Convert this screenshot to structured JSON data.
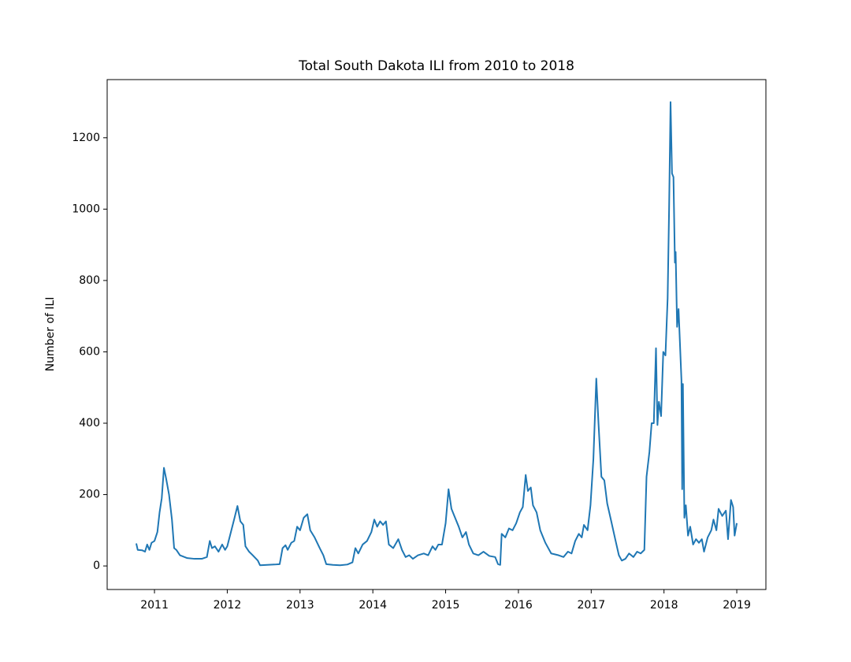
{
  "chart_data": {
    "type": "line",
    "title": "Total South Dakota ILI from 2010 to 2018",
    "ylabel": "Number of ILI",
    "xlim": [
      2010.35,
      2019.4
    ],
    "xticks": [
      2011,
      2012,
      2013,
      2014,
      2015,
      2016,
      2017,
      2018,
      2019
    ],
    "ylim": [
      -66,
      1363
    ],
    "yticks": [
      0,
      200,
      400,
      600,
      800,
      1000,
      1200
    ],
    "grid": false,
    "x": [
      2010.75,
      2010.77,
      2010.83,
      2010.87,
      2010.9,
      2010.93,
      2010.96,
      2011.0,
      2011.04,
      2011.07,
      2011.1,
      2011.13,
      2011.16,
      2011.2,
      2011.24,
      2011.27,
      2011.3,
      2011.35,
      2011.45,
      2011.55,
      2011.65,
      2011.72,
      2011.76,
      2011.79,
      2011.83,
      2011.88,
      2011.93,
      2011.97,
      2012.0,
      2012.05,
      2012.1,
      2012.14,
      2012.18,
      2012.22,
      2012.25,
      2012.3,
      2012.35,
      2012.42,
      2012.45,
      2012.55,
      2012.65,
      2012.72,
      2012.76,
      2012.8,
      2012.83,
      2012.88,
      2012.92,
      2012.96,
      2013.0,
      2013.05,
      2013.1,
      2013.14,
      2013.2,
      2013.27,
      2013.32,
      2013.36,
      2013.45,
      2013.55,
      2013.65,
      2013.72,
      2013.76,
      2013.8,
      2013.86,
      2013.92,
      2013.98,
      2014.02,
      2014.06,
      2014.1,
      2014.14,
      2014.18,
      2014.22,
      2014.28,
      2014.35,
      2014.4,
      2014.45,
      2014.5,
      2014.55,
      2014.62,
      2014.7,
      2014.76,
      2014.82,
      2014.86,
      2014.9,
      2014.95,
      2015.0,
      2015.04,
      2015.08,
      2015.12,
      2015.18,
      2015.23,
      2015.28,
      2015.32,
      2015.38,
      2015.45,
      2015.52,
      2015.6,
      2015.68,
      2015.72,
      2015.75,
      2015.77,
      2015.82,
      2015.87,
      2015.92,
      2015.97,
      2016.02,
      2016.06,
      2016.1,
      2016.13,
      2016.17,
      2016.2,
      2016.25,
      2016.3,
      2016.37,
      2016.45,
      2016.55,
      2016.62,
      2016.68,
      2016.73,
      2016.78,
      2016.83,
      2016.87,
      2016.9,
      2016.95,
      2016.99,
      2017.03,
      2017.07,
      2017.1,
      2017.14,
      2017.18,
      2017.22,
      2017.27,
      2017.33,
      2017.38,
      2017.42,
      2017.47,
      2017.52,
      2017.58,
      2017.63,
      2017.68,
      2017.73,
      2017.76,
      2017.8,
      2017.83,
      2017.86,
      2017.89,
      2017.91,
      2017.93,
      2017.96,
      2017.99,
      2018.02,
      2018.05,
      2018.07,
      2018.09,
      2018.11,
      2018.13,
      2018.15,
      2018.16,
      2018.18,
      2018.2,
      2018.24,
      2018.25,
      2018.26,
      2018.28,
      2018.3,
      2018.33,
      2018.36,
      2018.4,
      2018.44,
      2018.48,
      2018.52,
      2018.55,
      2018.6,
      2018.65,
      2018.68,
      2018.72,
      2018.75,
      2018.8,
      2018.85,
      2018.88,
      2018.92,
      2018.95,
      2018.97,
      2019.0
    ],
    "series": [
      {
        "color": "#1f77b4",
        "values": [
          63,
          45,
          44,
          40,
          60,
          45,
          65,
          70,
          95,
          150,
          190,
          275,
          245,
          200,
          130,
          50,
          45,
          30,
          22,
          20,
          20,
          25,
          70,
          50,
          55,
          40,
          60,
          45,
          55,
          95,
          135,
          168,
          125,
          115,
          55,
          40,
          30,
          15,
          2,
          3,
          4,
          5,
          50,
          58,
          45,
          65,
          70,
          110,
          100,
          135,
          145,
          100,
          80,
          50,
          30,
          5,
          3,
          2,
          4,
          10,
          50,
          35,
          60,
          70,
          95,
          130,
          110,
          125,
          115,
          125,
          60,
          50,
          75,
          45,
          25,
          30,
          20,
          30,
          35,
          30,
          55,
          45,
          60,
          60,
          120,
          215,
          160,
          140,
          110,
          80,
          95,
          60,
          35,
          30,
          40,
          28,
          25,
          5,
          3,
          90,
          80,
          105,
          100,
          120,
          150,
          165,
          255,
          210,
          220,
          170,
          150,
          100,
          65,
          35,
          30,
          25,
          40,
          35,
          70,
          90,
          80,
          115,
          100,
          170,
          300,
          525,
          400,
          250,
          240,
          175,
          130,
          75,
          30,
          15,
          20,
          35,
          25,
          40,
          35,
          45,
          250,
          320,
          400,
          400,
          610,
          395,
          460,
          420,
          600,
          590,
          750,
          1000,
          1300,
          1100,
          1090,
          850,
          880,
          670,
          720,
          520,
          215,
          510,
          135,
          170,
          85,
          110,
          60,
          75,
          65,
          75,
          40,
          80,
          100,
          130,
          100,
          160,
          140,
          155,
          75,
          185,
          165,
          85,
          120
        ]
      }
    ]
  }
}
